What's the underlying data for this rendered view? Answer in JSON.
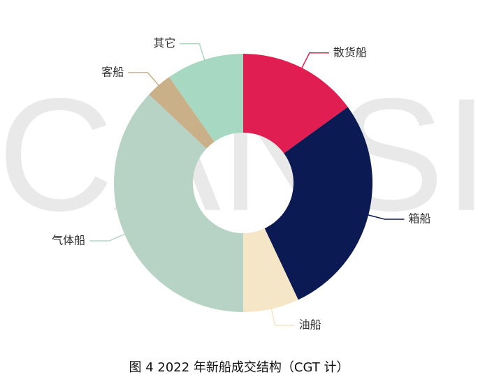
{
  "chart_data": {
    "type": "donut",
    "title": "图 4 2022 年新船成交结构（CGT 计）",
    "watermark": "CANSI",
    "categories": [
      "散货船",
      "箱船",
      "油船",
      "气体船",
      "客船",
      "其它"
    ],
    "values": [
      15,
      28,
      7,
      37,
      3.3,
      9.7
    ],
    "colors": [
      "#e01e52",
      "#0b1a52",
      "#f4e6c6",
      "#b7d3c6",
      "#c9b089",
      "#a7d8c2"
    ]
  }
}
